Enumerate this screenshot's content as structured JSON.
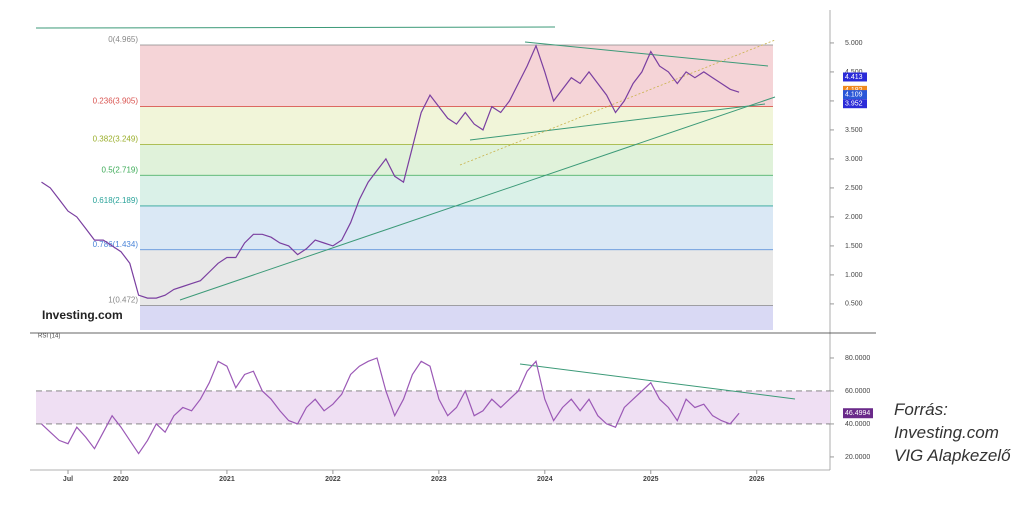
{
  "chart_data": [
    {
      "type": "line",
      "watermark": "Investing.com",
      "categories": [
        null,
        null,
        null,
        "Jul",
        null,
        null,
        null,
        null,
        null,
        "2020",
        null,
        null,
        null,
        null,
        null,
        null,
        null,
        null,
        null,
        null,
        null,
        "2021",
        null,
        null,
        null,
        null,
        null,
        null,
        null,
        null,
        null,
        null,
        null,
        "2022",
        null,
        null,
        null,
        null,
        null,
        null,
        null,
        null,
        null,
        null,
        null,
        "2023",
        null,
        null,
        null,
        null,
        null,
        null,
        null,
        null,
        null,
        null,
        null,
        "2024",
        null,
        null,
        null,
        null,
        null,
        null,
        null,
        null,
        null,
        null,
        null,
        "2025",
        null,
        null,
        null,
        null,
        null,
        null,
        null,
        null,
        null,
        null,
        null,
        "2026",
        null,
        null,
        null,
        null,
        null,
        null
      ],
      "values": [
        2.6,
        2.5,
        2.3,
        2.1,
        2.0,
        1.8,
        1.6,
        1.6,
        1.5,
        1.4,
        1.2,
        0.65,
        0.6,
        0.6,
        0.65,
        0.75,
        0.8,
        0.85,
        0.9,
        1.05,
        1.2,
        1.3,
        1.3,
        1.55,
        1.7,
        1.7,
        1.65,
        1.55,
        1.5,
        1.35,
        1.45,
        1.6,
        1.55,
        1.5,
        1.6,
        1.9,
        2.3,
        2.6,
        2.8,
        3.0,
        2.7,
        2.6,
        3.2,
        3.8,
        4.1,
        3.9,
        3.7,
        3.6,
        3.8,
        3.6,
        3.5,
        3.9,
        3.8,
        4.0,
        4.3,
        4.6,
        4.95,
        4.5,
        4.0,
        4.2,
        4.4,
        4.3,
        4.5,
        4.3,
        4.1,
        3.8,
        4.0,
        4.3,
        4.5,
        4.85,
        4.6,
        4.5,
        4.3,
        4.5,
        4.4,
        4.5,
        4.4,
        4.3,
        4.2,
        4.15,
        null,
        null,
        null,
        null,
        null,
        null,
        null,
        null
      ],
      "color": "#7a3fa0",
      "ylim": [
        0.05,
        5.43
      ],
      "yticks": [
        {
          "value": 0.5,
          "label": "0.500"
        },
        {
          "value": 1.0,
          "label": "1.000"
        },
        {
          "value": 1.5,
          "label": "1.500"
        },
        {
          "value": 2.0,
          "label": "2.000"
        },
        {
          "value": 2.5,
          "label": "2.500"
        },
        {
          "value": 3.0,
          "label": "3.000"
        },
        {
          "value": 3.5,
          "label": "3.500"
        },
        {
          "value": 4.0,
          "label": "4.000"
        },
        {
          "value": 4.5,
          "label": "4.500"
        },
        {
          "value": 5.0,
          "label": "5.000"
        }
      ],
      "fib_levels": [
        {
          "value": 4.965,
          "label": "0(4.965)",
          "color": "#888888",
          "fill": "#f3ccd0"
        },
        {
          "value": 3.905,
          "label": "0.236(3.905)",
          "color": "#d9534f",
          "fill": "#eef3d2"
        },
        {
          "value": 3.249,
          "label": "0.382(3.249)",
          "color": "#9aae2a",
          "fill": "#dbf0d4"
        },
        {
          "value": 2.719,
          "label": "0.5(2.719)",
          "color": "#3aaa55",
          "fill": "#d4eee4"
        },
        {
          "value": 2.189,
          "label": "0.618(2.189)",
          "color": "#2aa39a",
          "fill": "#d3e4f3"
        },
        {
          "value": 1.434,
          "label": "0.786(1.434)",
          "color": "#4a84d8",
          "fill": "#e4e4e4"
        },
        {
          "value": 0.472,
          "label": "1(0.472)",
          "color": "#888888",
          "fill": "#d2d2f2"
        }
      ],
      "price_tags": [
        {
          "value": 4.413,
          "color": "#2b2bd8"
        },
        {
          "value": 4.182,
          "color": "#f0891e"
        },
        {
          "value": 4.109,
          "color": "#2b57d8"
        },
        {
          "value": 3.952,
          "color": "#2b2bd8"
        }
      ]
    },
    {
      "type": "line",
      "title": "RSI (14)",
      "values": [
        40,
        35,
        30,
        28,
        38,
        32,
        25,
        35,
        45,
        38,
        30,
        22,
        30,
        40,
        35,
        45,
        50,
        48,
        55,
        65,
        78,
        75,
        62,
        70,
        72,
        60,
        55,
        48,
        42,
        40,
        50,
        55,
        48,
        52,
        58,
        70,
        75,
        78,
        80,
        60,
        45,
        55,
        70,
        78,
        75,
        55,
        45,
        50,
        60,
        45,
        48,
        55,
        50,
        55,
        60,
        72,
        78,
        55,
        42,
        50,
        55,
        48,
        55,
        45,
        40,
        38,
        50,
        55,
        60,
        65,
        55,
        50,
        42,
        55,
        50,
        52,
        45,
        42,
        40,
        46.4994,
        null,
        null,
        null,
        null,
        null,
        null,
        null,
        null
      ],
      "color": "#9b59b6",
      "tag_color": "#6a2a8a",
      "ylim": [
        14.5,
        90.9
      ],
      "yticks": [
        {
          "value": 20,
          "label": "20.0000"
        },
        {
          "value": 40,
          "label": "40.0000"
        },
        {
          "value": 60,
          "label": "60.0000"
        },
        {
          "value": 80,
          "label": "80.0000"
        }
      ],
      "reference_lines": [
        40,
        60
      ]
    }
  ],
  "caption": [
    "Forrás:",
    "Investing.com",
    "VIG Alapkezelő"
  ]
}
